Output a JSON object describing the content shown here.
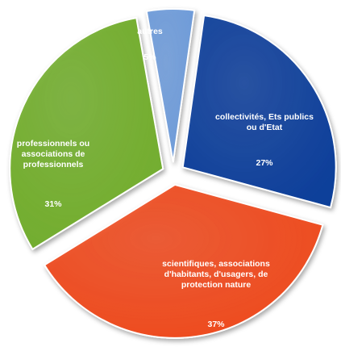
{
  "chart_data": {
    "type": "pie",
    "slices": [
      {
        "label": "collectivités, Ets publics ou d'Etat",
        "value": 27,
        "value_label": "27%",
        "color": "#0d3f9a"
      },
      {
        "label": "scientifiques, associations d'habitants, d'usagers, de protection nature",
        "value": 37,
        "value_label": "37%",
        "color": "#ee4a1e"
      },
      {
        "label": "professionnels ou associations de professionnels",
        "value": 31,
        "value_label": "31%",
        "color": "#72ad2d"
      },
      {
        "label": "autres",
        "value": 5,
        "value_label": "5%",
        "color": "#6e9bd9"
      }
    ],
    "exploded": true,
    "legend": "none"
  }
}
